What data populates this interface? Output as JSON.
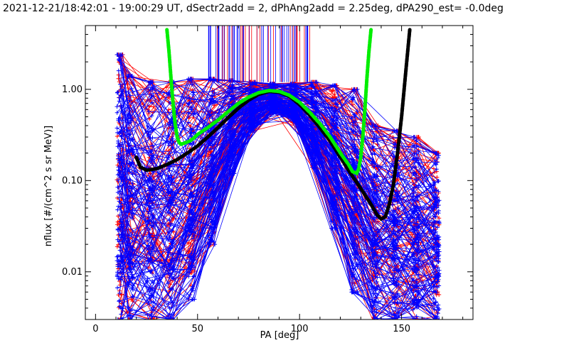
{
  "chart_data": {
    "type": "line",
    "title": "2021-12-21/18:42:01 - 19:00:29 UT, dSectr2add = 2, dPhAng2add = 2.25deg, dPA290_est=  -0.0deg",
    "xlabel": "PA [deg]",
    "ylabel": "nflux [#/(cm^2 s sr MeV)]",
    "xlim": [
      -5,
      185
    ],
    "ylim": [
      0.003,
      5
    ],
    "ylog": true,
    "grid": false,
    "x_ticks": [
      {
        "v": 0,
        "label": "0"
      },
      {
        "v": 50,
        "label": "50"
      },
      {
        "v": 100,
        "label": "100"
      },
      {
        "v": 150,
        "label": "150"
      }
    ],
    "y_ticks": [
      {
        "v": 0.01,
        "label": "0.01"
      },
      {
        "v": 0.1,
        "label": "0.10"
      },
      {
        "v": 1.0,
        "label": "1.00"
      }
    ],
    "series_colors": {
      "blue": "#0000ff",
      "red": "#ff0000",
      "green": "#00ee00",
      "black": "#000000"
    },
    "fit_black": {
      "x": [
        20,
        22,
        25,
        30,
        35,
        40,
        45,
        50,
        55,
        60,
        65,
        70,
        75,
        80,
        85,
        90,
        95,
        100,
        105,
        110,
        115,
        120,
        125,
        130,
        135,
        138,
        140,
        142,
        144,
        146,
        148,
        150,
        152,
        154
      ],
      "y": [
        0.18,
        0.14,
        0.13,
        0.135,
        0.15,
        0.17,
        0.2,
        0.24,
        0.3,
        0.38,
        0.49,
        0.62,
        0.76,
        0.88,
        0.95,
        0.93,
        0.84,
        0.68,
        0.52,
        0.38,
        0.27,
        0.18,
        0.12,
        0.082,
        0.055,
        0.042,
        0.038,
        0.04,
        0.055,
        0.09,
        0.2,
        0.5,
        1.5,
        4.5
      ]
    },
    "fit_green": {
      "x": [
        35,
        36,
        37,
        38,
        39,
        40,
        41,
        42,
        44,
        46,
        48,
        50,
        55,
        60,
        65,
        70,
        75,
        80,
        85,
        90,
        95,
        100,
        105,
        110,
        115,
        120,
        124,
        126,
        128,
        129,
        130,
        131,
        132,
        133,
        134,
        135
      ],
      "y": [
        4.5,
        2.6,
        1.3,
        0.7,
        0.42,
        0.3,
        0.26,
        0.25,
        0.26,
        0.27,
        0.29,
        0.32,
        0.38,
        0.46,
        0.57,
        0.7,
        0.82,
        0.92,
        0.97,
        0.95,
        0.86,
        0.72,
        0.56,
        0.42,
        0.3,
        0.2,
        0.15,
        0.125,
        0.12,
        0.135,
        0.18,
        0.3,
        0.6,
        1.3,
        2.6,
        4.5
      ]
    },
    "bins_x": [
      12,
      17,
      27,
      37,
      47,
      57,
      67,
      77,
      87,
      97,
      107,
      117,
      127,
      137,
      147,
      157,
      167
    ],
    "envelope_low": [
      0.003,
      0.003,
      0.003,
      0.003,
      0.005,
      0.02,
      0.12,
      0.35,
      0.55,
      0.45,
      0.14,
      0.03,
      0.006,
      0.003,
      0.003,
      0.003,
      0.003
    ],
    "envelope_high": [
      2.4,
      1.4,
      1.2,
      1.2,
      1.3,
      1.3,
      1.25,
      1.2,
      1.15,
      1.15,
      1.2,
      1.1,
      1.0,
      0.4,
      0.35,
      0.3,
      0.2
    ],
    "profiles": {
      "blue_count": 140,
      "red_count": 80
    }
  }
}
